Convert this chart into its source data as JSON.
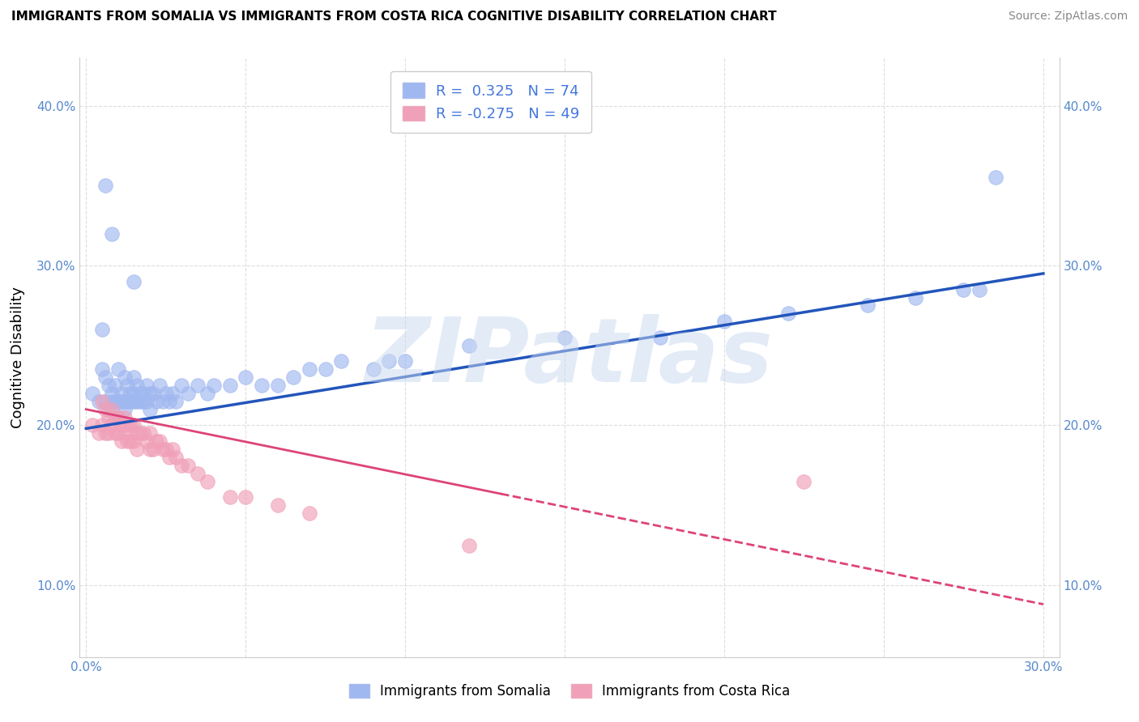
{
  "title": "IMMIGRANTS FROM SOMALIA VS IMMIGRANTS FROM COSTA RICA COGNITIVE DISABILITY CORRELATION CHART",
  "source": "Source: ZipAtlas.com",
  "ylabel": "Cognitive Disability",
  "yticks": [
    10.0,
    20.0,
    30.0,
    40.0
  ],
  "xticks": [
    0.0,
    0.05,
    0.1,
    0.15,
    0.2,
    0.25,
    0.3
  ],
  "xlim": [
    -0.002,
    0.305
  ],
  "ylim": [
    0.055,
    0.43
  ],
  "somalia_color": "#a0b8f0",
  "costa_rica_color": "#f0a0b8",
  "trend_somalia_color": "#2255bb",
  "trend_costa_rica_color": "#dd4477",
  "watermark_text": "ZIPatlas",
  "legend_blue_color": "#4477dd",
  "legend_pink_color": "#ee6688",
  "somalia_x": [
    0.002,
    0.004,
    0.005,
    0.005,
    0.006,
    0.006,
    0.007,
    0.007,
    0.008,
    0.008,
    0.009,
    0.009,
    0.01,
    0.01,
    0.01,
    0.011,
    0.011,
    0.012,
    0.012,
    0.012,
    0.013,
    0.013,
    0.014,
    0.014,
    0.015,
    0.015,
    0.015,
    0.016,
    0.016,
    0.017,
    0.017,
    0.018,
    0.018,
    0.019,
    0.019,
    0.02,
    0.02,
    0.021,
    0.022,
    0.023,
    0.024,
    0.025,
    0.026,
    0.027,
    0.028,
    0.03,
    0.032,
    0.035,
    0.038,
    0.04,
    0.045,
    0.05,
    0.055,
    0.06,
    0.065,
    0.07,
    0.075,
    0.08,
    0.09,
    0.095,
    0.1,
    0.12,
    0.15,
    0.18,
    0.2,
    0.22,
    0.245,
    0.26,
    0.275,
    0.28,
    0.006,
    0.008,
    0.015,
    0.285
  ],
  "somalia_y": [
    0.22,
    0.215,
    0.235,
    0.26,
    0.215,
    0.23,
    0.21,
    0.225,
    0.215,
    0.22,
    0.215,
    0.225,
    0.205,
    0.215,
    0.235,
    0.215,
    0.22,
    0.21,
    0.215,
    0.23,
    0.215,
    0.225,
    0.215,
    0.22,
    0.215,
    0.22,
    0.23,
    0.215,
    0.225,
    0.215,
    0.22,
    0.215,
    0.22,
    0.215,
    0.225,
    0.21,
    0.22,
    0.22,
    0.215,
    0.225,
    0.215,
    0.22,
    0.215,
    0.22,
    0.215,
    0.225,
    0.22,
    0.225,
    0.22,
    0.225,
    0.225,
    0.23,
    0.225,
    0.225,
    0.23,
    0.235,
    0.235,
    0.24,
    0.235,
    0.24,
    0.24,
    0.25,
    0.255,
    0.255,
    0.265,
    0.27,
    0.275,
    0.28,
    0.285,
    0.285,
    0.35,
    0.32,
    0.29,
    0.355
  ],
  "costa_rica_x": [
    0.002,
    0.004,
    0.005,
    0.005,
    0.006,
    0.006,
    0.007,
    0.007,
    0.008,
    0.008,
    0.009,
    0.009,
    0.01,
    0.01,
    0.011,
    0.011,
    0.012,
    0.012,
    0.013,
    0.013,
    0.014,
    0.014,
    0.015,
    0.015,
    0.016,
    0.016,
    0.017,
    0.018,
    0.019,
    0.02,
    0.02,
    0.021,
    0.022,
    0.023,
    0.024,
    0.025,
    0.026,
    0.027,
    0.028,
    0.03,
    0.032,
    0.035,
    0.038,
    0.045,
    0.05,
    0.06,
    0.07,
    0.12,
    0.225
  ],
  "costa_rica_y": [
    0.2,
    0.195,
    0.2,
    0.215,
    0.195,
    0.21,
    0.195,
    0.205,
    0.2,
    0.21,
    0.195,
    0.205,
    0.195,
    0.205,
    0.19,
    0.2,
    0.195,
    0.205,
    0.19,
    0.2,
    0.19,
    0.2,
    0.19,
    0.2,
    0.185,
    0.195,
    0.195,
    0.195,
    0.19,
    0.185,
    0.195,
    0.185,
    0.19,
    0.19,
    0.185,
    0.185,
    0.18,
    0.185,
    0.18,
    0.175,
    0.175,
    0.17,
    0.165,
    0.155,
    0.155,
    0.15,
    0.145,
    0.125,
    0.165
  ],
  "trend_soma_x0": 0.0,
  "trend_soma_x1": 0.3,
  "trend_soma_y0": 0.198,
  "trend_soma_y1": 0.295,
  "trend_cr_x0": 0.0,
  "trend_cr_x1": 0.3,
  "trend_cr_y0": 0.21,
  "trend_cr_y1": 0.088,
  "trend_cr_solid_end": 0.13
}
